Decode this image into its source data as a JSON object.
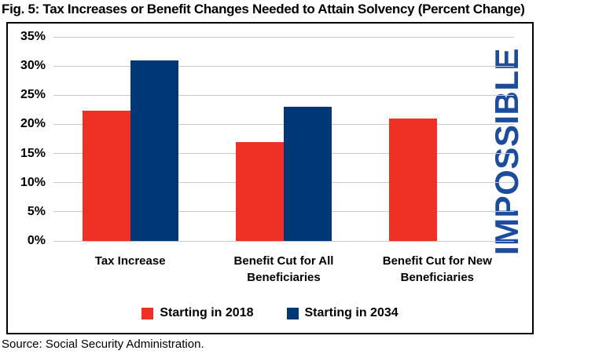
{
  "title": "Fig. 5: Tax Increases or Benefit Changes Needed to Attain Solvency (Percent Change)",
  "source": "Source: Social Security Administration.",
  "colors": {
    "series_2018_red": "#ee3124",
    "series_2034_navy": "#003876",
    "impossible_blue": "#1c4d9c",
    "gridline_gray": "#c9c9c9",
    "border_black": "#000000"
  },
  "chart_data": {
    "type": "bar",
    "categories": [
      "Tax Increase",
      "Benefit Cut for All Beneficiaries",
      "Benefit Cut for New Beneficiaries"
    ],
    "series": [
      {
        "name": "Starting in 2018",
        "color": "#ee3124",
        "values": [
          22.4,
          17,
          21
        ]
      },
      {
        "name": "Starting in 2034",
        "color": "#003876",
        "values": [
          31,
          23,
          null
        ]
      }
    ],
    "annotation": {
      "text": "IMPOSSIBLE",
      "color": "#1c4d9c",
      "category": "Benefit Cut for New Beneficiaries",
      "series": "Starting in 2034",
      "orientation": "vertical"
    },
    "ylim": [
      0,
      35
    ],
    "ytick_step": 5,
    "ytick_labels": [
      "35%",
      "30%",
      "25%",
      "20%",
      "15%",
      "10%",
      "5%",
      "0%"
    ],
    "grid": true,
    "legend_position": "bottom"
  }
}
